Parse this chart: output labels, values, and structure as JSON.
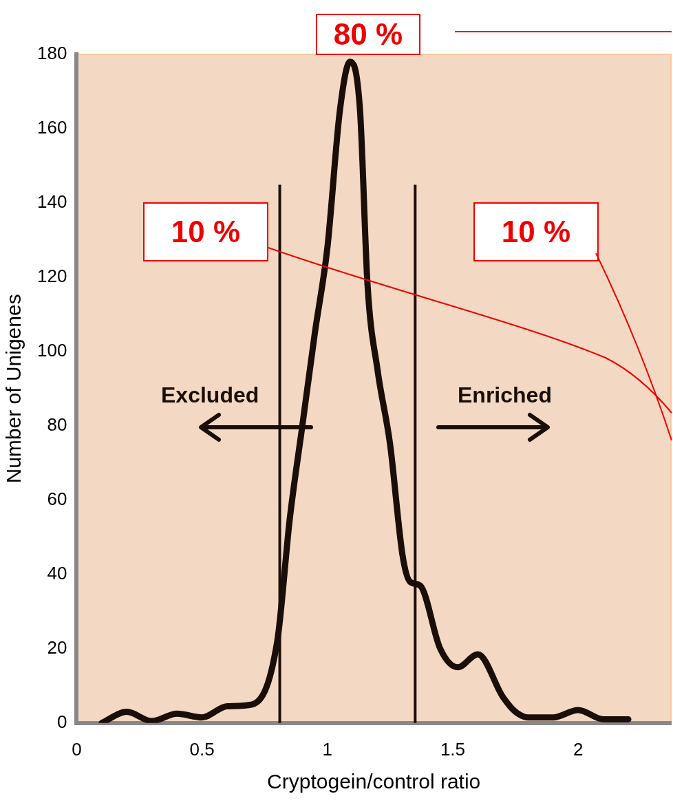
{
  "chart_data": {
    "type": "line",
    "xlabel": "Cryptogein/control ratio",
    "ylabel": "Number of Unigenes",
    "xlim": [
      0,
      2.37
    ],
    "xticks": [
      0,
      0.5,
      1,
      1.5,
      2
    ],
    "ylim": [
      0,
      180
    ],
    "yticks": [
      0,
      20,
      40,
      60,
      80,
      100,
      120,
      140,
      160,
      180
    ],
    "grid": false,
    "legend": false,
    "marker": "none",
    "line_style": "solid",
    "series": [
      {
        "color": "#1a0e08",
        "x": [
          0.1,
          0.2,
          0.3,
          0.4,
          0.5,
          0.6,
          0.7,
          0.8,
          0.85,
          0.9,
          0.95,
          1.0,
          1.05,
          1.09,
          1.13,
          1.16,
          1.2,
          1.25,
          1.3,
          1.33,
          1.37,
          1.45,
          1.52,
          1.6,
          1.7,
          1.75,
          1.8,
          1.9,
          2.0,
          2.1,
          2.2
        ],
        "values": [
          0,
          3,
          0.5,
          2.5,
          1.5,
          4.5,
          5,
          22,
          55,
          80,
          105,
          128,
          165,
          178,
          165,
          118,
          95,
          75,
          45,
          38,
          37,
          20,
          15,
          18.5,
          7,
          3,
          1.5,
          1.5,
          3.5,
          1,
          1
        ]
      }
    ],
    "ref_lines": [
      {
        "axis": "x",
        "value": 0.81,
        "color": "#1a0e08"
      },
      {
        "axis": "x",
        "value": 1.35,
        "color": "#1a0e08"
      }
    ],
    "annotations": [
      "80 %",
      "10 %",
      "10 %",
      "Excluded",
      "Enriched"
    ]
  }
}
